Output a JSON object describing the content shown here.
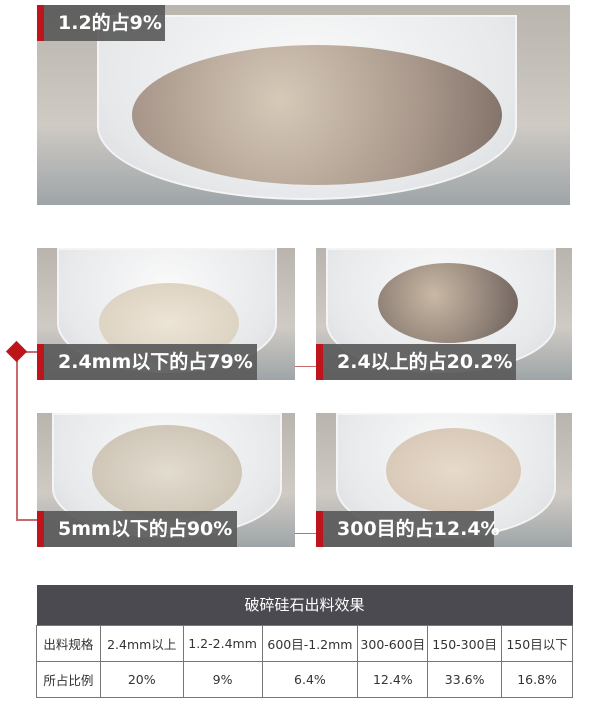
{
  "photos": [
    {
      "label": "1.2的占9%"
    },
    {
      "label": "2.4mm以下的占79%"
    },
    {
      "label": "2.4以上的占20.2%"
    },
    {
      "label": "5mm以下的占90%"
    },
    {
      "label": "300目的占12.4%"
    }
  ],
  "table": {
    "title": "破碎硅石出料效果",
    "row_headers": [
      "出料规格",
      "所占比例"
    ],
    "specs": [
      "2.4mm以上",
      "1.2-2.4mm",
      "600目-1.2mm",
      "300-600目",
      "150-300目",
      "150目以下"
    ],
    "ratios": [
      "20%",
      "9%",
      "6.4%",
      "12.4%",
      "33.6%",
      "16.8%"
    ]
  },
  "colors": {
    "accent": "#c0141c",
    "label_bg": "#5a5a5a",
    "table_header": "#4a4a50"
  }
}
